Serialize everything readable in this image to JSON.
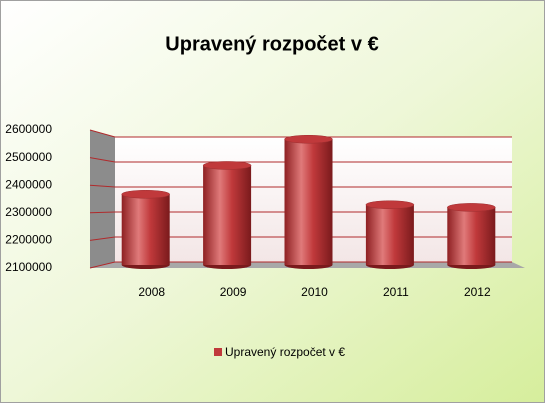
{
  "chart_data": {
    "type": "bar",
    "title": "Upravený rozpočet v €",
    "categories": [
      "2008",
      "2009",
      "2010",
      "2011",
      "2012"
    ],
    "series": [
      {
        "name": "Upravený rozpočet v €",
        "color": "#c0393b",
        "values": [
          2370000,
          2480000,
          2580000,
          2330000,
          2320000
        ]
      }
    ],
    "ylim": [
      2100000,
      2600000
    ],
    "yticks": [
      2100000,
      2200000,
      2300000,
      2400000,
      2500000,
      2600000
    ],
    "grid": true,
    "legend": "bottom"
  }
}
